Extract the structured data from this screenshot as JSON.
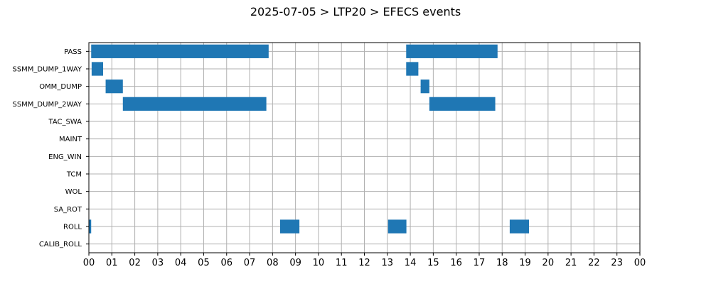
{
  "chart_data": {
    "type": "bar",
    "orientation": "horizontal-timeline",
    "title": "2025-07-05 > LTP20 > EFECS events",
    "xlabel": "",
    "ylabel": "",
    "x_tick_labels": [
      "00",
      "01",
      "02",
      "03",
      "04",
      "05",
      "06",
      "07",
      "08",
      "09",
      "10",
      "11",
      "12",
      "13",
      "14",
      "15",
      "16",
      "17",
      "18",
      "19",
      "20",
      "21",
      "22",
      "23",
      "00"
    ],
    "xlim_hours": [
      0,
      24
    ],
    "grid": true,
    "categories": [
      "PASS",
      "SSMM_DUMP_1WAY",
      "OMM_DUMP",
      "SSMM_DUMP_2WAY",
      "TAC_SWA",
      "MAINT",
      "ENG_WIN",
      "TCM",
      "WOL",
      "SA_ROT",
      "ROLL",
      "CALIB_ROLL"
    ],
    "color": "#1f77b4",
    "events": [
      {
        "category": "PASS",
        "start": 0.1,
        "end": 7.83
      },
      {
        "category": "PASS",
        "start": 13.82,
        "end": 17.8
      },
      {
        "category": "SSMM_DUMP_1WAY",
        "start": 0.12,
        "end": 0.62
      },
      {
        "category": "SSMM_DUMP_1WAY",
        "start": 13.82,
        "end": 14.35
      },
      {
        "category": "OMM_DUMP",
        "start": 0.73,
        "end": 1.48
      },
      {
        "category": "OMM_DUMP",
        "start": 14.45,
        "end": 14.83
      },
      {
        "category": "SSMM_DUMP_2WAY",
        "start": 1.48,
        "end": 7.73
      },
      {
        "category": "SSMM_DUMP_2WAY",
        "start": 14.83,
        "end": 17.7
      },
      {
        "category": "ROLL",
        "start": 0.0,
        "end": 0.1
      },
      {
        "category": "ROLL",
        "start": 8.33,
        "end": 9.17
      },
      {
        "category": "ROLL",
        "start": 13.03,
        "end": 13.83
      },
      {
        "category": "ROLL",
        "start": 18.33,
        "end": 19.17
      }
    ]
  }
}
